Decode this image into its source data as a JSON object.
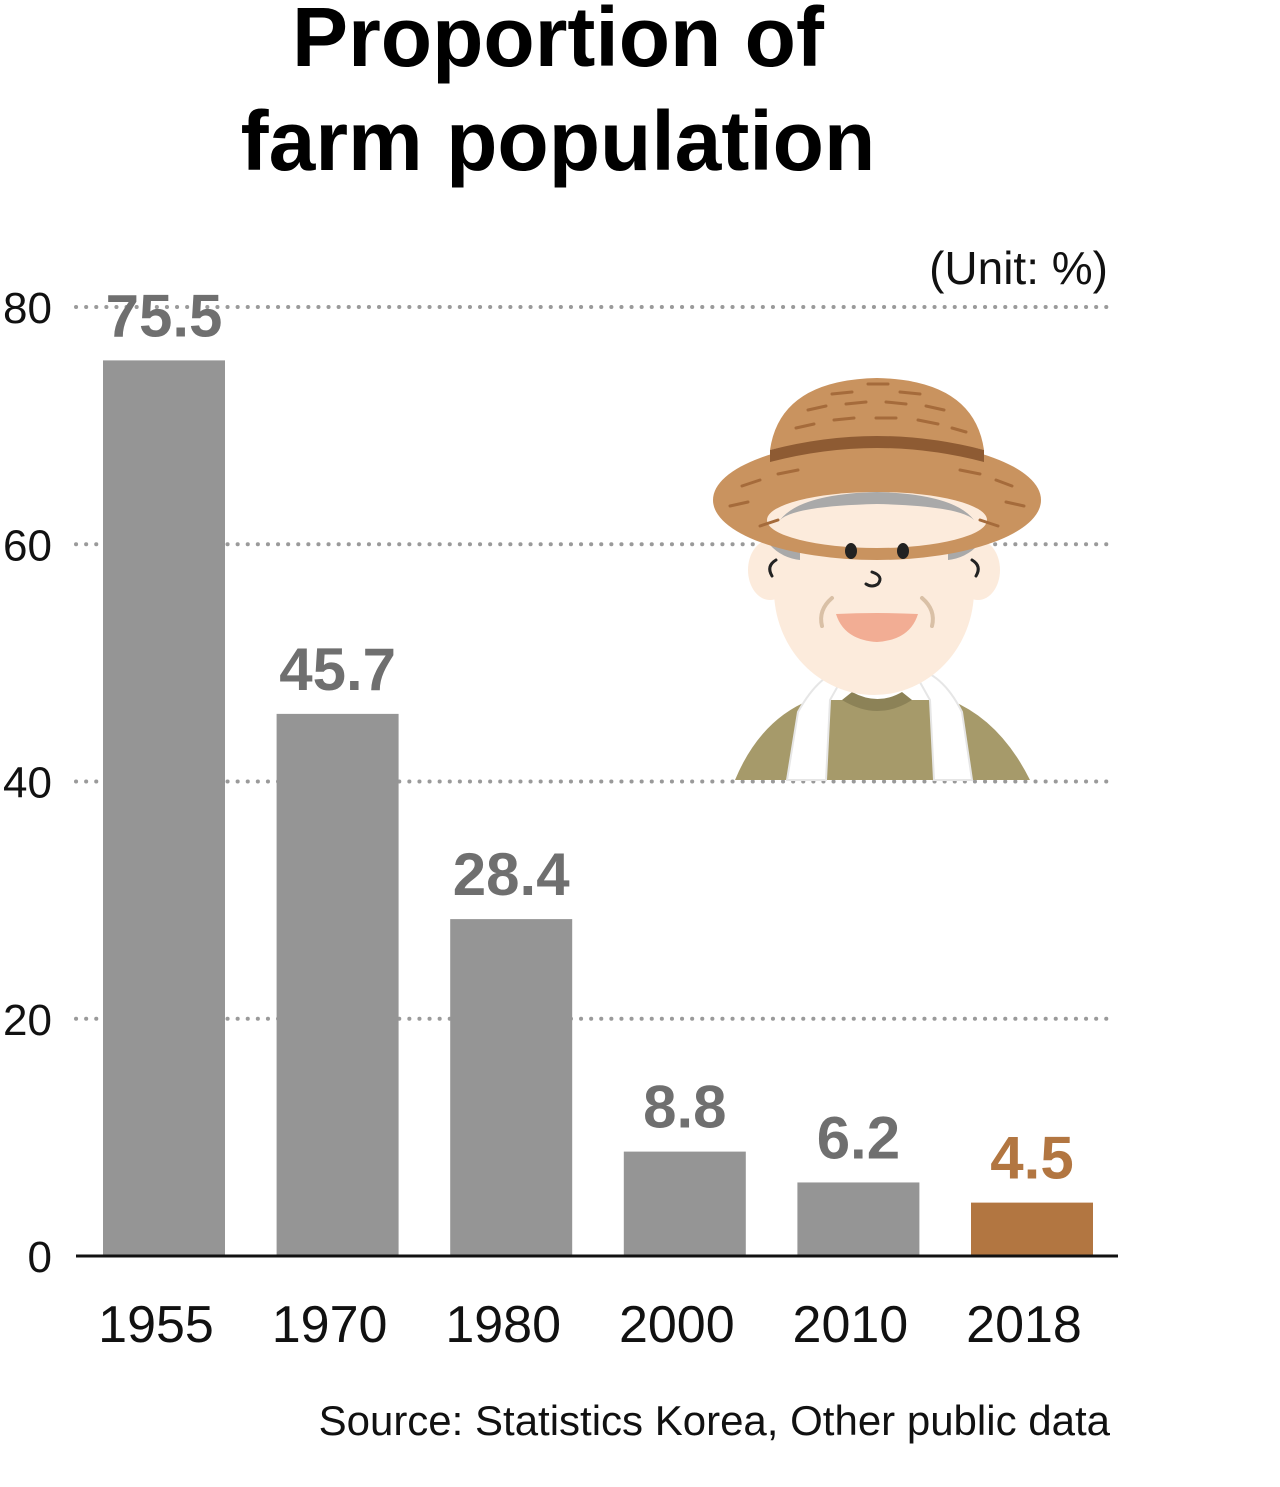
{
  "chart_data": {
    "type": "bar",
    "title_lines": [
      "Proportion of",
      "farm population"
    ],
    "unit_note": "(Unit: %)",
    "categories": [
      "1955",
      "1970",
      "1980",
      "2000",
      "2010",
      "2018"
    ],
    "values": [
      75.5,
      45.7,
      28.4,
      8.8,
      6.2,
      4.5
    ],
    "value_labels": [
      "75.5",
      "45.7",
      "28.4",
      "8.8",
      "6.2",
      "4.5"
    ],
    "ylim": [
      0,
      80
    ],
    "yticks": [
      "0",
      "20",
      "40",
      "60",
      "80"
    ],
    "grid": "dotted horizontal",
    "highlight_index": 5,
    "colors": {
      "bar": "#959595",
      "highlight": "#b27641",
      "label": "#6f6f6f"
    },
    "source": "Source: Statistics Korea, Other public data"
  },
  "illustration": {
    "name": "farmer-icon"
  }
}
